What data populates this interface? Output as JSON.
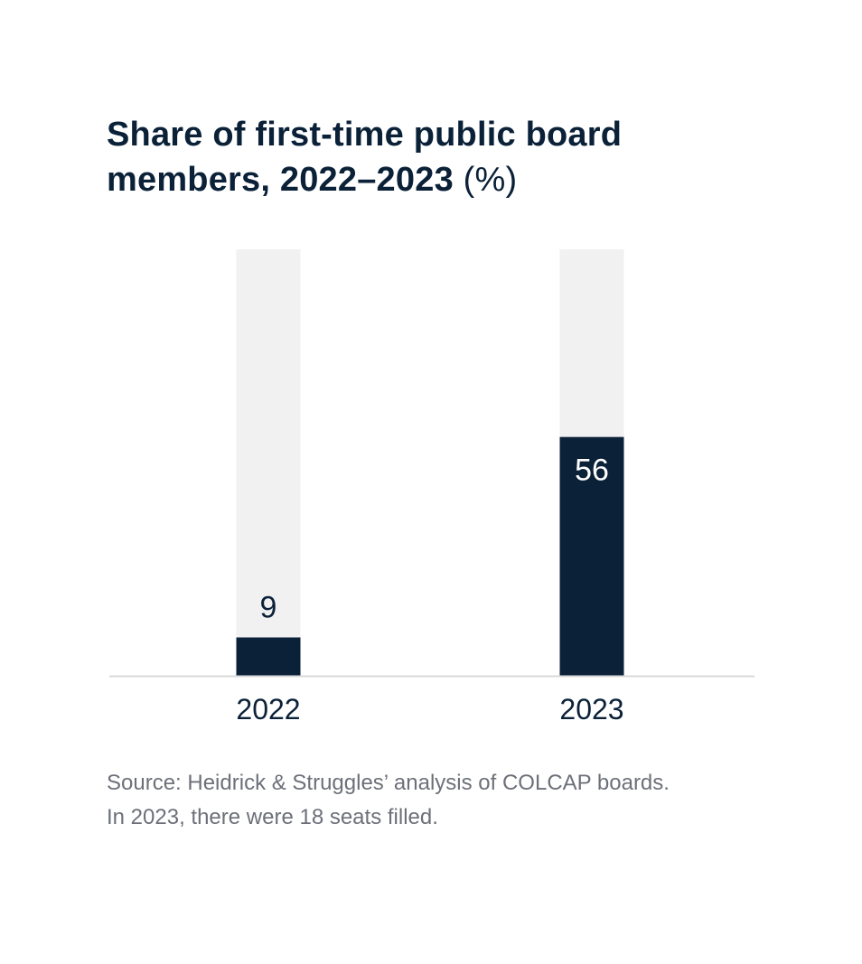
{
  "chart_data": {
    "type": "bar",
    "title": "Share of first-time public board members, 2022–2023",
    "title_unit": "(%)",
    "categories": [
      "2022",
      "2023"
    ],
    "values": [
      9,
      56
    ],
    "data_labels": [
      "9",
      "56"
    ],
    "ylim": [
      0,
      100
    ],
    "grid": false,
    "colors": {
      "bar": "#0b2138",
      "track": "#f1f1f1",
      "axis": "#d9d9d9",
      "label_inside": "#ffffff",
      "label_outside": "#0b2138"
    }
  },
  "source": {
    "line1": "Source: Heidrick & Struggles’ analysis of COLCAP boards.",
    "line2": "In 2023, there were 18 seats filled."
  }
}
